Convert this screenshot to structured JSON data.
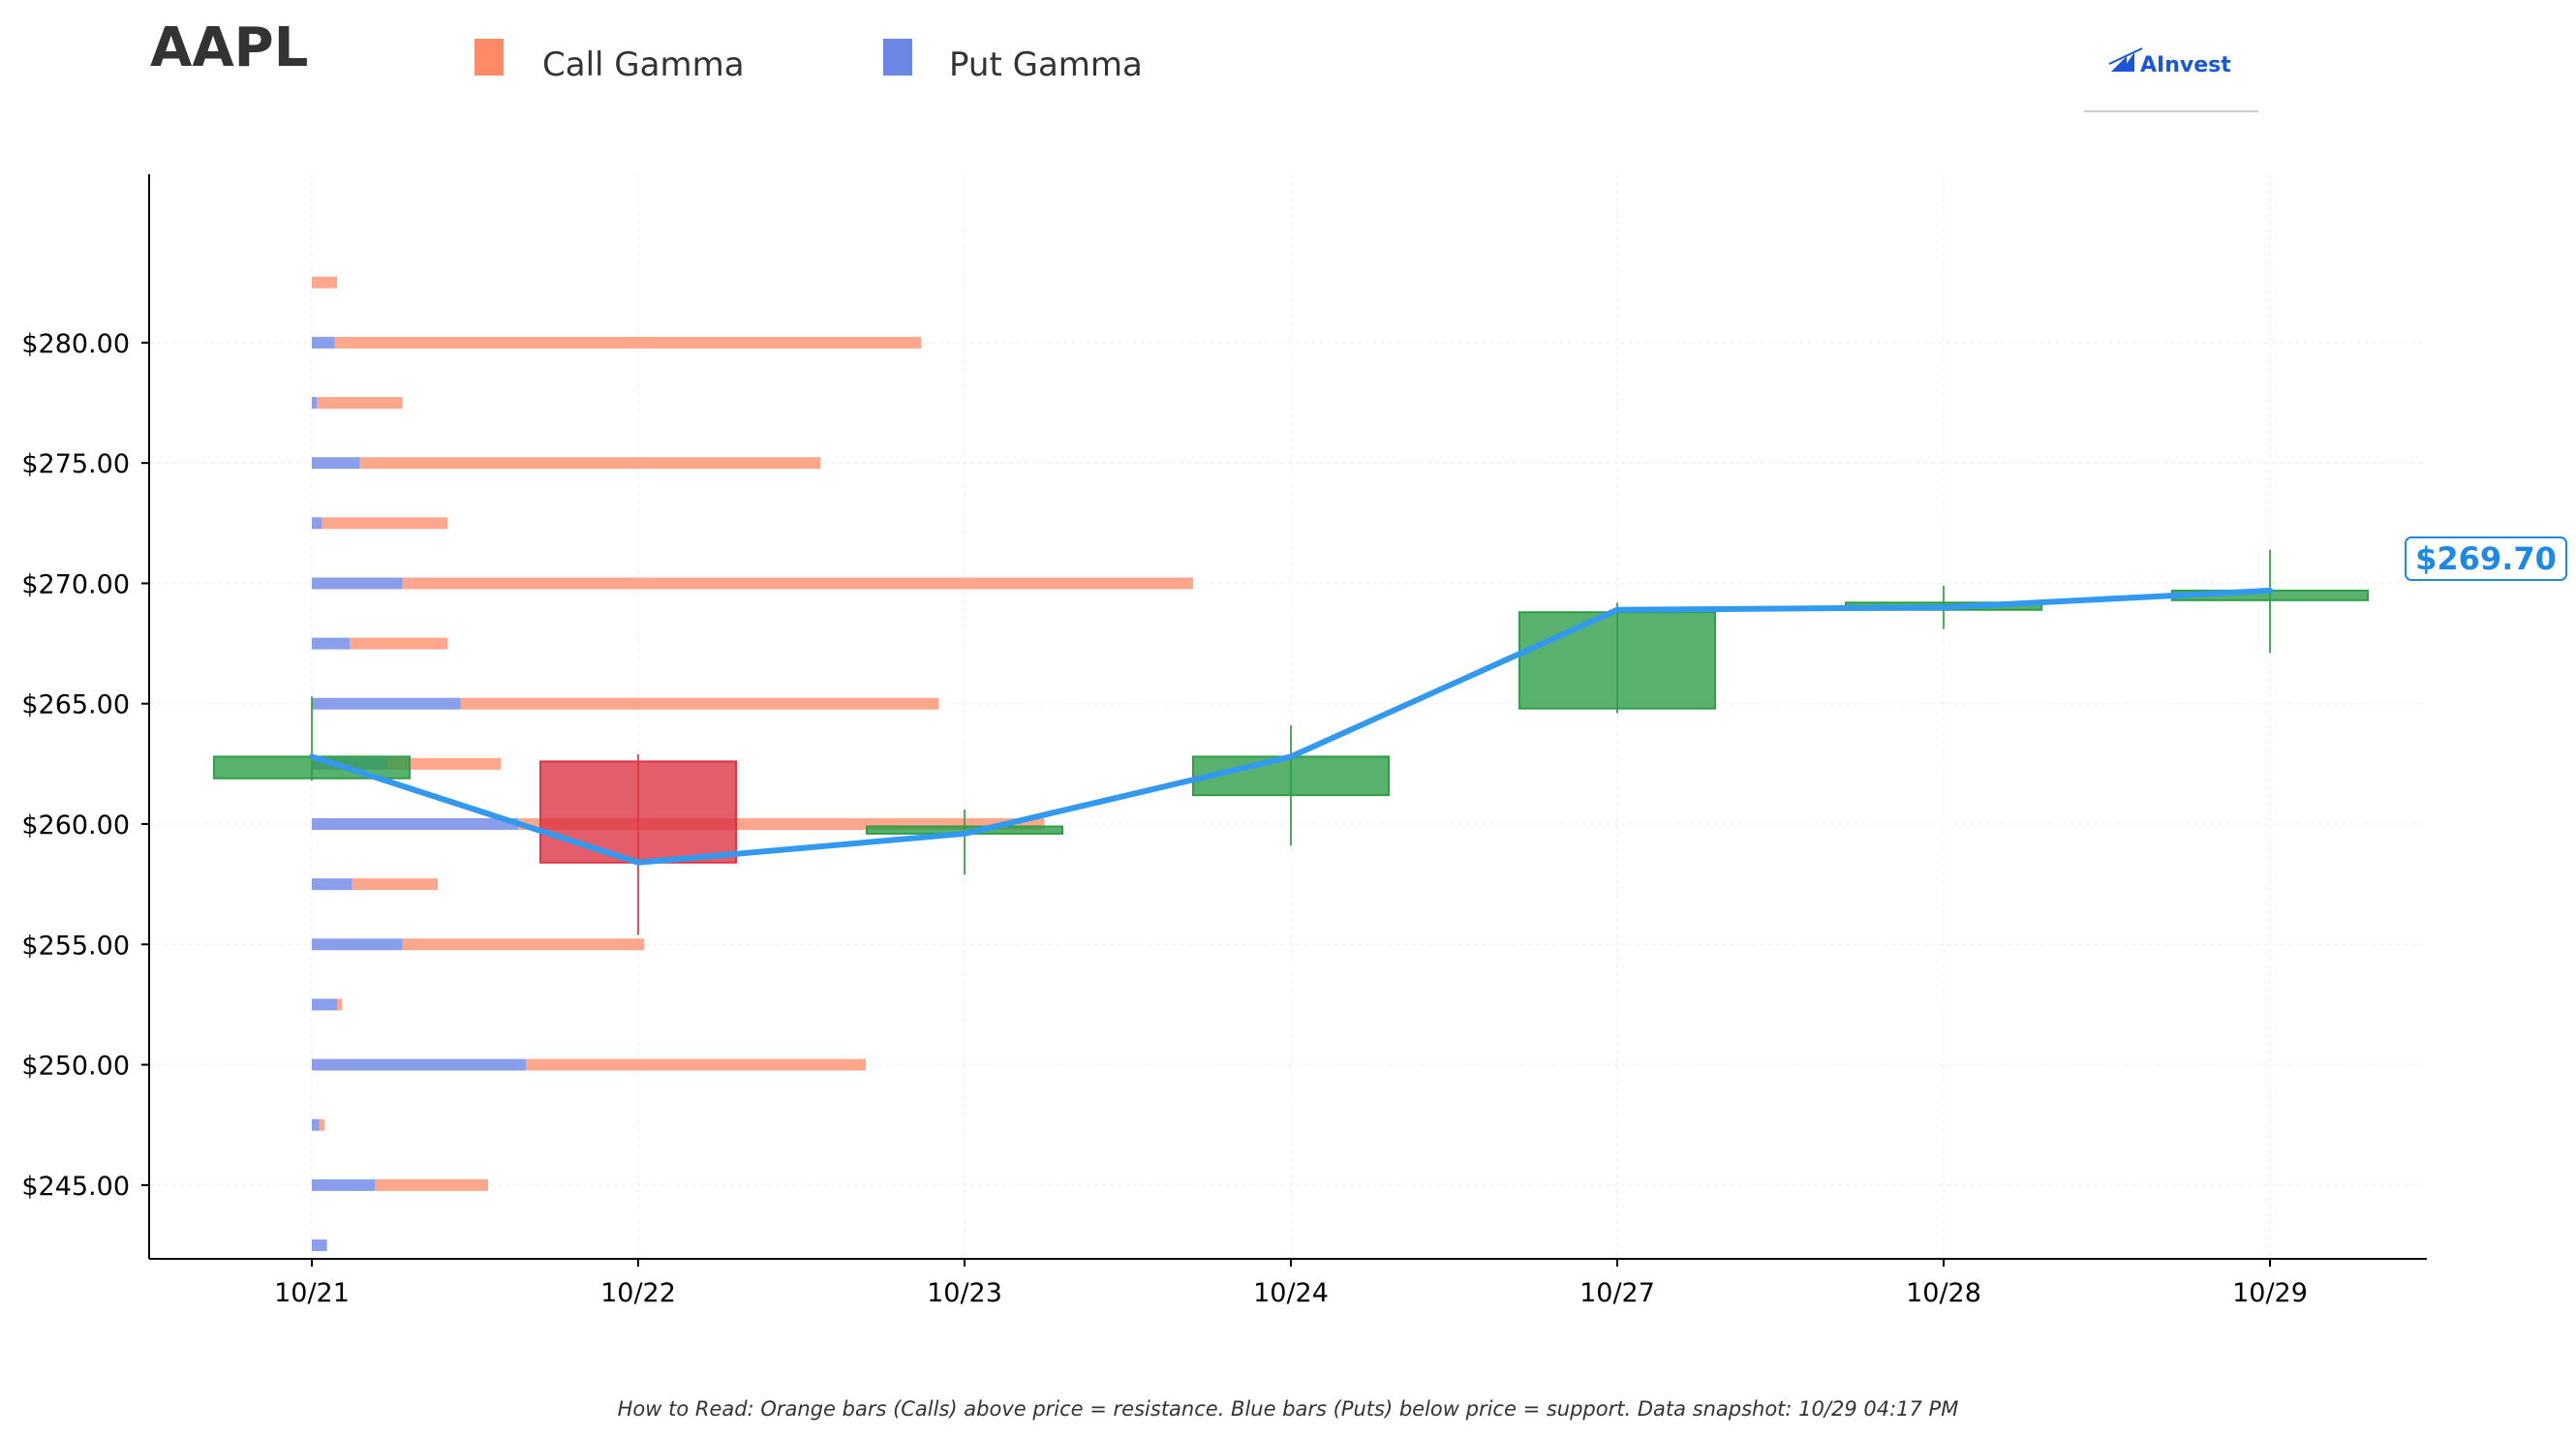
{
  "header": {
    "ticker": "AAPL",
    "brand": "AInvest",
    "legend": [
      {
        "label": "Call Gamma",
        "color": "#ff8a65"
      },
      {
        "label": "Put Gamma",
        "color": "#6b87e6"
      }
    ]
  },
  "footnote": "How to Read: Orange bars (Calls) above price = resistance. Blue bars (Puts) below price = support. Data snapshot: 10/29 04:17 PM",
  "last_price_label": "$269.70",
  "colors": {
    "call": "#ff8a65",
    "put": "#6b87e6",
    "up": "#2e9e47",
    "down": "#dc3545",
    "price_line": "#3399ee"
  },
  "chart_data": {
    "type": "candlestick-with-gamma-bars",
    "categories": [
      "10/21",
      "10/22",
      "10/23",
      "10/24",
      "10/27",
      "10/28",
      "10/29"
    ],
    "ylim": [
      242.5,
      284.5
    ],
    "yticks": [
      245,
      250,
      255,
      260,
      265,
      270,
      275,
      280
    ],
    "ytick_labels": [
      "$245.00",
      "$250.00",
      "$255.00",
      "$260.00",
      "$265.00",
      "$270.00",
      "$275.00",
      "$280.00"
    ],
    "candles": [
      {
        "date": "10/21",
        "open": 261.9,
        "high": 265.3,
        "low": 261.8,
        "close": 262.8
      },
      {
        "date": "10/22",
        "open": 262.6,
        "high": 262.9,
        "low": 255.4,
        "close": 258.4
      },
      {
        "date": "10/23",
        "open": 259.6,
        "high": 260.6,
        "low": 257.9,
        "close": 259.9
      },
      {
        "date": "10/24",
        "open": 261.2,
        "high": 264.1,
        "low": 259.1,
        "close": 262.8
      },
      {
        "date": "10/27",
        "open": 264.8,
        "high": 269.2,
        "low": 264.6,
        "close": 268.8
      },
      {
        "date": "10/28",
        "open": 268.9,
        "high": 269.9,
        "low": 268.1,
        "close": 269.2
      },
      {
        "date": "10/29",
        "open": 269.3,
        "high": 271.4,
        "low": 267.1,
        "close": 269.7
      }
    ],
    "price_line": [
      262.8,
      258.4,
      259.6,
      262.8,
      268.9,
      269.0,
      269.7
    ],
    "gamma_bars": [
      {
        "strike": 242.5,
        "put": 0.06,
        "call": 0.0
      },
      {
        "strike": 245.0,
        "put": 0.25,
        "call": 0.45
      },
      {
        "strike": 247.5,
        "put": 0.03,
        "call": 0.02
      },
      {
        "strike": 250.0,
        "put": 0.85,
        "call": 1.35
      },
      {
        "strike": 252.5,
        "put": 0.1,
        "call": 0.02
      },
      {
        "strike": 255.0,
        "put": 0.36,
        "call": 0.96
      },
      {
        "strike": 257.5,
        "put": 0.16,
        "call": 0.34
      },
      {
        "strike": 260.0,
        "put": 0.82,
        "call": 2.09
      },
      {
        "strike": 262.5,
        "put": 0.3,
        "call": 0.45
      },
      {
        "strike": 265.0,
        "put": 0.59,
        "call": 1.9
      },
      {
        "strike": 267.5,
        "put": 0.15,
        "call": 0.39
      },
      {
        "strike": 270.0,
        "put": 0.36,
        "call": 3.14
      },
      {
        "strike": 272.5,
        "put": 0.04,
        "call": 0.5
      },
      {
        "strike": 275.0,
        "put": 0.19,
        "call": 1.83
      },
      {
        "strike": 277.5,
        "put": 0.02,
        "call": 0.34
      },
      {
        "strike": 280.0,
        "put": 0.09,
        "call": 2.33
      },
      {
        "strike": 282.5,
        "put": 0.0,
        "call": 0.1
      }
    ]
  }
}
